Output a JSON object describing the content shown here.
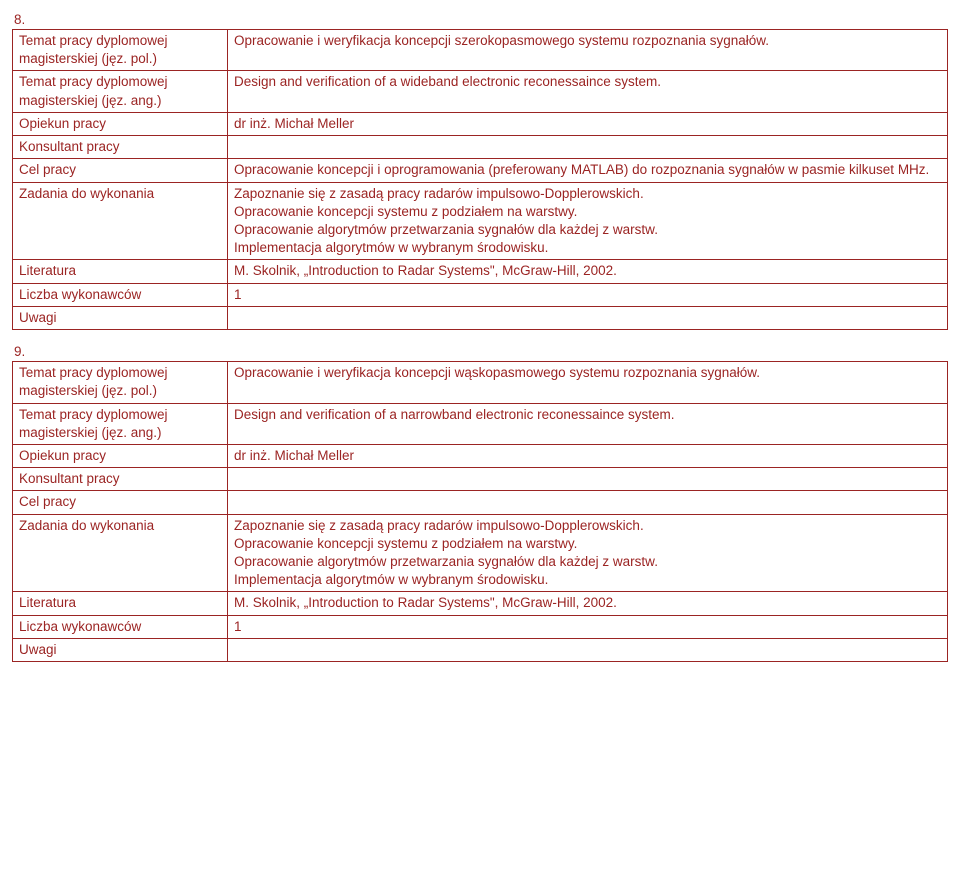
{
  "sections": {
    "s8": {
      "num": "8.",
      "rows": {
        "r0": {
          "label": "Temat pracy dyplomowej magisterskiej (jęz. pol.)",
          "value": "Opracowanie i weryfikacja koncepcji szerokopasmowego systemu rozpoznania sygnałów."
        },
        "r1": {
          "label": "Temat pracy dyplomowej magisterskiej (jęz. ang.)",
          "value": "Design and verification of a wideband electronic reconessaince system."
        },
        "r2": {
          "label": "Opiekun pracy",
          "value": "dr inż. Michał Meller"
        },
        "r3": {
          "label": "Konsultant pracy",
          "value": ""
        },
        "r4": {
          "label": "Cel pracy",
          "value": "Opracowanie koncepcji i oprogramowania (preferowany MATLAB) do rozpoznania sygnałów w pasmie kilkuset MHz."
        },
        "r5": {
          "label": "Zadania do wykonania",
          "value": "Zapoznanie się z zasadą pracy radarów impulsowo-Dopplerowskich.\nOpracowanie koncepcji systemu z podziałem na warstwy.\nOpracowanie algorytmów przetwarzania sygnałów dla każdej z warstw.\nImplementacja algorytmów w wybranym środowisku."
        },
        "r6": {
          "label": "Literatura",
          "value": "M. Skolnik, „Introduction to Radar Systems\", McGraw-Hill, 2002."
        },
        "r7": {
          "label": "Liczba wykonawców",
          "value": "1"
        },
        "r8": {
          "label": "Uwagi",
          "value": ""
        }
      }
    },
    "s9": {
      "num": "9.",
      "rows": {
        "r0": {
          "label": "Temat pracy dyplomowej magisterskiej (jęz. pol.)",
          "value": "Opracowanie i weryfikacja koncepcji wąskopasmowego systemu rozpoznania sygnałów."
        },
        "r1": {
          "label": "Temat pracy dyplomowej magisterskiej (jęz. ang.)",
          "value": "Design and verification of a narrowband electronic reconessaince system."
        },
        "r2": {
          "label": "Opiekun pracy",
          "value": "dr inż. Michał Meller"
        },
        "r3": {
          "label": "Konsultant pracy",
          "value": ""
        },
        "r4": {
          "label": "Cel pracy",
          "value": ""
        },
        "r5": {
          "label": "Zadania do wykonania",
          "value": "Zapoznanie się z zasadą pracy radarów impulsowo-Dopplerowskich.\nOpracowanie koncepcji systemu z podziałem na warstwy.\nOpracowanie algorytmów przetwarzania sygnałów dla każdej z warstw.\nImplementacja algorytmów w wybranym środowisku."
        },
        "r6": {
          "label": "Literatura",
          "value": "M. Skolnik, „Introduction to Radar Systems\", McGraw-Hill, 2002."
        },
        "r7": {
          "label": "Liczba wykonawców",
          "value": "1"
        },
        "r8": {
          "label": "Uwagi",
          "value": ""
        }
      }
    }
  }
}
